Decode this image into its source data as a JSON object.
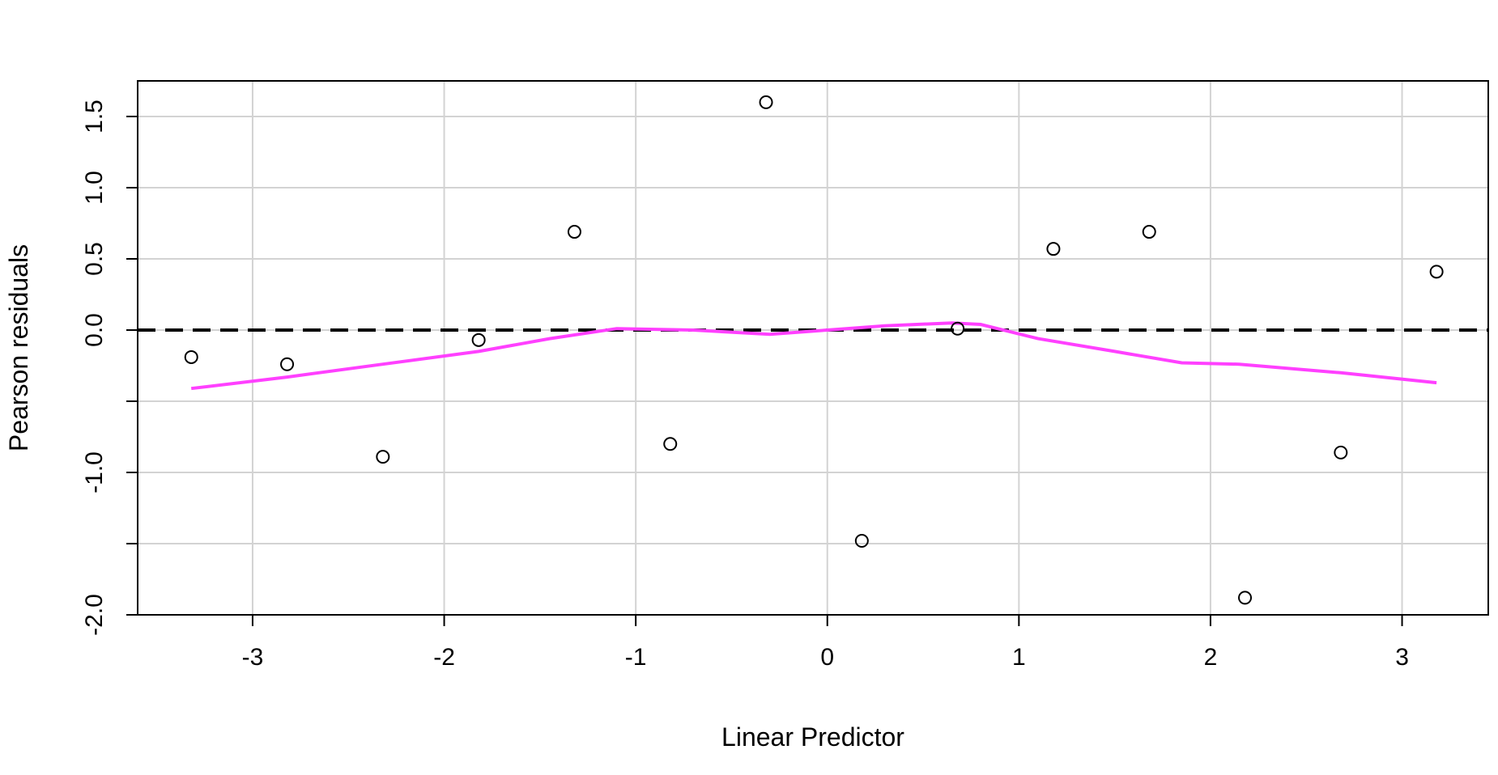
{
  "chart_data": {
    "type": "scatter",
    "title": "",
    "xlabel": "Linear Predictor",
    "ylabel": "Pearson residuals",
    "xlim": [
      -3.6,
      3.45
    ],
    "ylim": [
      -2.0,
      1.75
    ],
    "xticks": [
      -3,
      -2,
      -1,
      0,
      1,
      2,
      3
    ],
    "xtick_labels": [
      "-3",
      "-2",
      "-1",
      "0",
      "1",
      "2",
      "3"
    ],
    "yticks": [
      -2.0,
      -1.5,
      -1.0,
      -0.5,
      0.0,
      0.5,
      1.0,
      1.5
    ],
    "ytick_labels": [
      "-2.0",
      "",
      "-1.0",
      "",
      "0.0",
      "0.5",
      "1.0",
      "1.5"
    ],
    "grid": true,
    "reference_line": {
      "y": 0.0,
      "style": "dashed",
      "color": "#000000"
    },
    "points": [
      {
        "x": -3.32,
        "y": -0.19
      },
      {
        "x": -2.82,
        "y": -0.24
      },
      {
        "x": -2.32,
        "y": -0.89
      },
      {
        "x": -1.82,
        "y": -0.07
      },
      {
        "x": -1.32,
        "y": 0.69
      },
      {
        "x": -0.82,
        "y": -0.8
      },
      {
        "x": -0.32,
        "y": 1.6
      },
      {
        "x": 0.18,
        "y": -1.48
      },
      {
        "x": 0.68,
        "y": 0.01
      },
      {
        "x": 1.18,
        "y": 0.57
      },
      {
        "x": 1.68,
        "y": 0.69
      },
      {
        "x": 2.18,
        "y": -1.88
      },
      {
        "x": 2.68,
        "y": -0.86
      },
      {
        "x": 3.18,
        "y": 0.41
      }
    ],
    "smooth_line": {
      "color": "#ff40ff",
      "points": [
        {
          "x": -3.32,
          "y": -0.41
        },
        {
          "x": -2.82,
          "y": -0.33
        },
        {
          "x": -2.32,
          "y": -0.24
        },
        {
          "x": -1.82,
          "y": -0.15
        },
        {
          "x": -1.45,
          "y": -0.06
        },
        {
          "x": -1.1,
          "y": 0.01
        },
        {
          "x": -0.7,
          "y": 0.0
        },
        {
          "x": -0.3,
          "y": -0.03
        },
        {
          "x": 0.0,
          "y": 0.0
        },
        {
          "x": 0.3,
          "y": 0.03
        },
        {
          "x": 0.65,
          "y": 0.05
        },
        {
          "x": 0.8,
          "y": 0.04
        },
        {
          "x": 1.1,
          "y": -0.06
        },
        {
          "x": 1.5,
          "y": -0.15
        },
        {
          "x": 1.85,
          "y": -0.23
        },
        {
          "x": 2.15,
          "y": -0.24
        },
        {
          "x": 2.68,
          "y": -0.3
        },
        {
          "x": 3.18,
          "y": -0.37
        }
      ]
    },
    "colors": {
      "grid": "#d3d3d3",
      "points": "#000000",
      "frame": "#000000"
    }
  }
}
